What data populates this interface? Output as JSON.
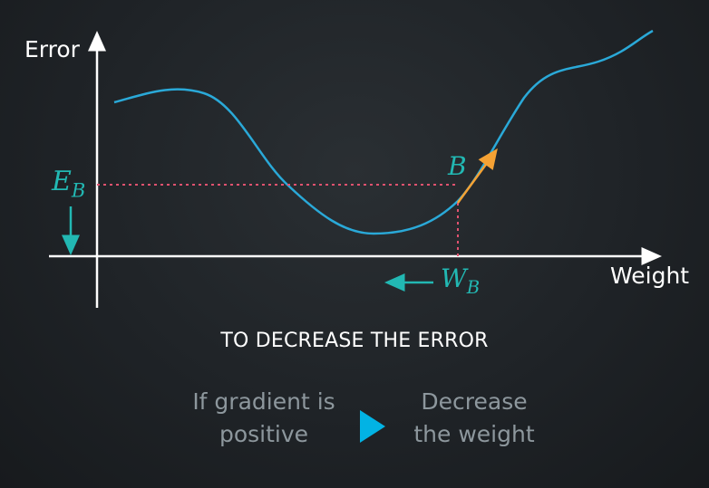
{
  "diagram": {
    "y_axis_label": "Error",
    "x_axis_label": "Weight",
    "point_label": "B",
    "error_label": {
      "base": "E",
      "subscript": "B"
    },
    "weight_label": {
      "base": "W",
      "subscript": "B"
    },
    "colors": {
      "curve": "#2aa9d8",
      "dotted_guides": "#e0526f",
      "gradient_arrow": "#f5a234",
      "annotation": "#22b8b3",
      "axes": "#ffffff"
    }
  },
  "caption": "TO DECREASE THE ERROR",
  "rule": {
    "condition_line1": "If gradient is",
    "condition_line2": "positive",
    "arrow_icon": "play-icon",
    "action_line1": "Decrease",
    "action_line2": "the weight"
  }
}
